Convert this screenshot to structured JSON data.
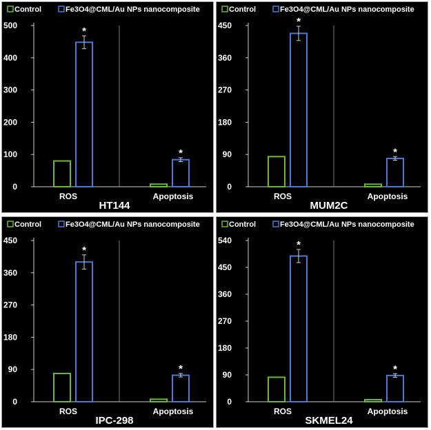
{
  "chart_data": [
    {
      "type": "bar",
      "title": "HT144",
      "categories": [
        "ROS",
        "Apoptosis"
      ],
      "series": [
        {
          "name": "Control",
          "values": [
            80,
            8
          ],
          "errors": [
            4,
            1
          ]
        },
        {
          "name": "Fe3O4@CML/Au NPs nanocomposite",
          "values": [
            448,
            84
          ],
          "errors": [
            20,
            6
          ]
        }
      ],
      "significance": [
        "*",
        "*"
      ],
      "ylim": [
        0,
        500
      ],
      "yticks": [
        0,
        100,
        200,
        300,
        400,
        500
      ]
    },
    {
      "type": "bar",
      "title": "MUM2C",
      "categories": [
        "ROS",
        "Apoptosis"
      ],
      "series": [
        {
          "name": "Control",
          "values": [
            84,
            7
          ],
          "errors": [
            4,
            1
          ]
        },
        {
          "name": "Fe3O4@CML/Au NPs nanocomposite",
          "values": [
            428,
            79
          ],
          "errors": [
            20,
            5
          ]
        }
      ],
      "significance": [
        "*",
        "*"
      ],
      "ylim": [
        0,
        450
      ],
      "yticks": [
        0,
        90,
        180,
        270,
        360,
        450
      ]
    },
    {
      "type": "bar",
      "title": "IPC-298",
      "categories": [
        "ROS",
        "Apoptosis"
      ],
      "series": [
        {
          "name": "Control",
          "values": [
            79,
            7
          ],
          "errors": [
            3,
            1
          ]
        },
        {
          "name": "Fe3O4@CML/Au NPs nanocomposite",
          "values": [
            390,
            74
          ],
          "errors": [
            20,
            5
          ]
        }
      ],
      "significance": [
        "*",
        "*"
      ],
      "ylim": [
        0,
        450
      ],
      "yticks": [
        0,
        90,
        180,
        270,
        360,
        450
      ]
    },
    {
      "type": "bar",
      "title": "SKMEL24",
      "categories": [
        "ROS",
        "Apoptosis"
      ],
      "series": [
        {
          "name": "Control",
          "values": [
            82,
            7
          ],
          "errors": [
            3,
            1
          ]
        },
        {
          "name": "Fe3O4@CML/Au NPs nanocomposite",
          "values": [
            488,
            88
          ],
          "errors": [
            22,
            6
          ]
        }
      ],
      "significance": [
        "*",
        "*"
      ],
      "ylim": [
        0,
        540
      ],
      "yticks": [
        0,
        90,
        180,
        270,
        360,
        450,
        540
      ]
    }
  ],
  "colors": {
    "control": "#6cb83a",
    "treatment": "#4a79d6",
    "axis": "#cfcfcf",
    "divider": "#7a7a7a",
    "text": "#ffffff"
  }
}
